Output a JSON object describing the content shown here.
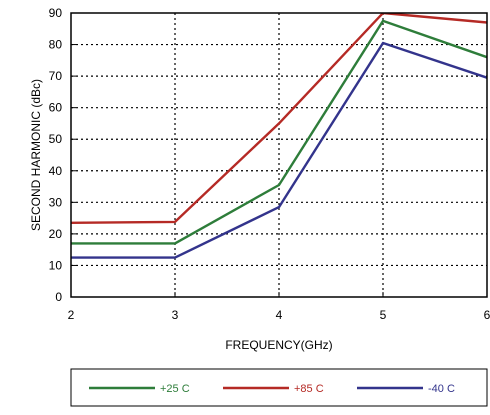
{
  "chart_data": {
    "type": "line",
    "xlabel": "FREQUENCY(GHz)",
    "ylabel": "SECOND HARMONIC (dBc)",
    "xlim": [
      2,
      6
    ],
    "ylim": [
      0,
      90
    ],
    "xticks": [
      "2",
      "3",
      "4",
      "5",
      "6"
    ],
    "yticks": [
      "0",
      "10",
      "20",
      "30",
      "40",
      "50",
      "60",
      "70",
      "80",
      "90"
    ],
    "grid": true,
    "legend_position": "bottom",
    "series": [
      {
        "name": "+25 C",
        "color": "#2e7d3a",
        "x": [
          2,
          3,
          4,
          5,
          6
        ],
        "y": [
          17,
          17,
          35.5,
          87.5,
          76
        ]
      },
      {
        "name": "+85 C",
        "color": "#b52a25",
        "x": [
          2,
          3,
          4,
          5,
          6
        ],
        "y": [
          23.5,
          23.8,
          55,
          90,
          87
        ]
      },
      {
        "name": "-40 C",
        "color": "#33348c",
        "x": [
          2,
          3,
          4,
          5,
          6
        ],
        "y": [
          12.5,
          12.5,
          28.5,
          80.5,
          69.5
        ]
      }
    ]
  }
}
